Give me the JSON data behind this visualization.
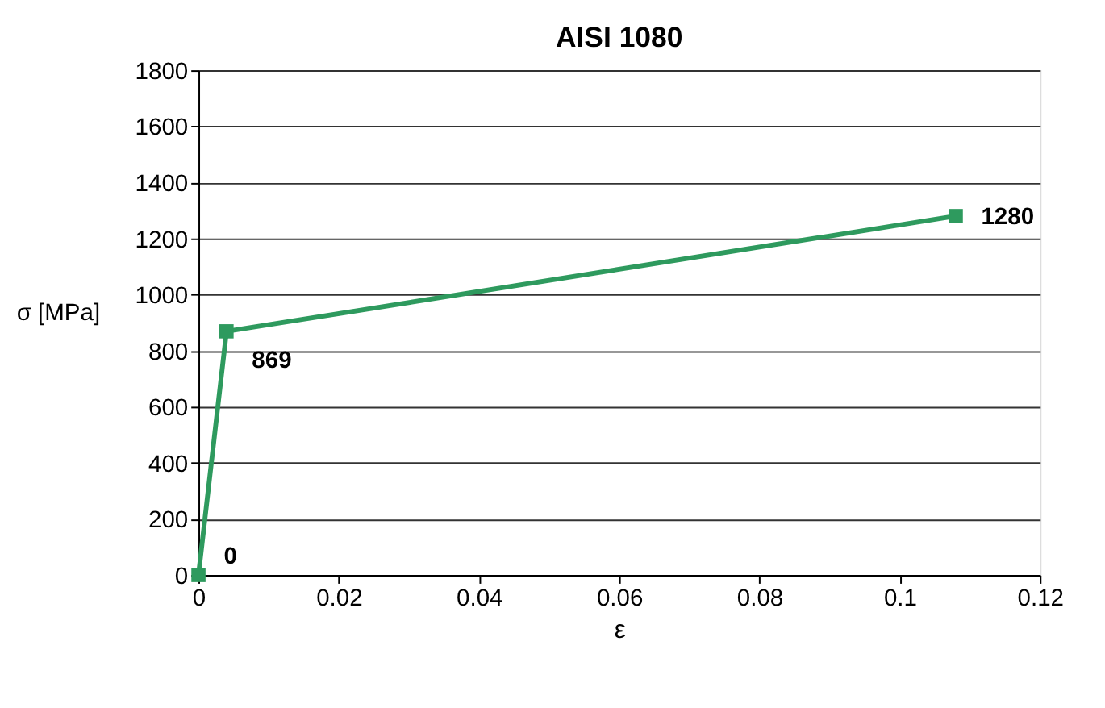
{
  "chart_data": {
    "type": "line",
    "title": "AISI 1080",
    "xlabel": "ε",
    "ylabel": "σ [MPa]",
    "x": [
      0,
      0.004,
      0.108
    ],
    "series": [
      {
        "color": "#2e9a5e",
        "values": [
          0,
          869,
          1280
        ]
      }
    ],
    "data_labels": true,
    "marker": "square",
    "line_style": "solid",
    "grid": "y",
    "legend": false,
    "xlim": [
      0,
      0.12
    ],
    "xticks": [
      0,
      0.02,
      0.04,
      0.06,
      0.08,
      0.1,
      0.12
    ],
    "ylim": [
      0,
      1800
    ],
    "yticks": [
      0,
      200,
      400,
      600,
      800,
      1000,
      1200,
      1400,
      1600,
      1800
    ]
  }
}
